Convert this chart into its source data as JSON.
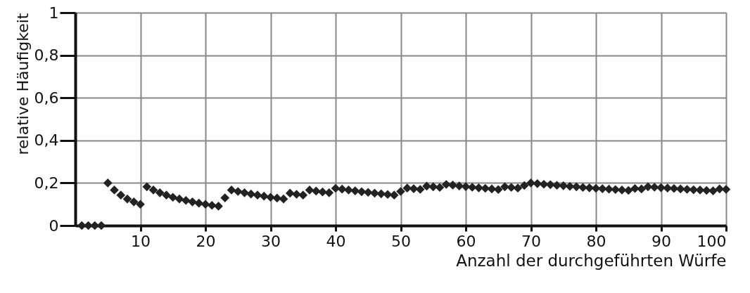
{
  "chart_data": {
    "type": "scatter",
    "xlabel": "Anzahl der durchgeführten Würfe",
    "ylabel": "relative Häufigkeit",
    "x": [
      1,
      2,
      3,
      4,
      5,
      6,
      7,
      8,
      9,
      10,
      11,
      12,
      13,
      14,
      15,
      16,
      17,
      18,
      19,
      20,
      21,
      22,
      23,
      24,
      25,
      26,
      27,
      28,
      29,
      30,
      31,
      32,
      33,
      34,
      35,
      36,
      37,
      38,
      39,
      40,
      41,
      42,
      43,
      44,
      45,
      46,
      47,
      48,
      49,
      50,
      51,
      52,
      53,
      54,
      55,
      56,
      57,
      58,
      59,
      60,
      61,
      62,
      63,
      64,
      65,
      66,
      67,
      68,
      69,
      70,
      71,
      72,
      73,
      74,
      75,
      76,
      77,
      78,
      79,
      80,
      81,
      82,
      83,
      84,
      85,
      86,
      87,
      88,
      89,
      90,
      91,
      92,
      93,
      94,
      95,
      96,
      97,
      98,
      99,
      100
    ],
    "series": [
      {
        "color": "#222222",
        "values": [
          0,
          0,
          0,
          0,
          0.2,
          0.167,
          0.143,
          0.125,
          0.111,
          0.1,
          0.182,
          0.167,
          0.154,
          0.143,
          0.133,
          0.125,
          0.118,
          0.111,
          0.105,
          0.1,
          0.095,
          0.091,
          0.13,
          0.167,
          0.16,
          0.154,
          0.148,
          0.143,
          0.138,
          0.133,
          0.129,
          0.125,
          0.152,
          0.147,
          0.143,
          0.167,
          0.162,
          0.158,
          0.154,
          0.175,
          0.171,
          0.167,
          0.163,
          0.159,
          0.156,
          0.152,
          0.149,
          0.146,
          0.143,
          0.16,
          0.176,
          0.173,
          0.17,
          0.185,
          0.182,
          0.179,
          0.193,
          0.19,
          0.186,
          0.183,
          0.18,
          0.177,
          0.175,
          0.172,
          0.169,
          0.182,
          0.179,
          0.176,
          0.188,
          0.2,
          0.197,
          0.194,
          0.192,
          0.189,
          0.187,
          0.184,
          0.182,
          0.179,
          0.177,
          0.175,
          0.173,
          0.171,
          0.169,
          0.167,
          0.165,
          0.174,
          0.172,
          0.182,
          0.18,
          0.178,
          0.176,
          0.174,
          0.172,
          0.17,
          0.168,
          0.167,
          0.165,
          0.163,
          0.172,
          0.17
        ]
      }
    ],
    "marker": "diamond",
    "grid": true,
    "xlim": [
      0,
      100
    ],
    "xticks": [
      10,
      20,
      30,
      40,
      50,
      60,
      70,
      80,
      90,
      100
    ],
    "ylim": [
      0,
      1
    ],
    "yticks": [
      0,
      {
        "value": 0.2,
        "label": "0,2"
      },
      {
        "value": 0.4,
        "label": "0,4"
      },
      {
        "value": 0.6,
        "label": "0,6"
      },
      {
        "value": 0.8,
        "label": "0,8"
      },
      1
    ]
  }
}
